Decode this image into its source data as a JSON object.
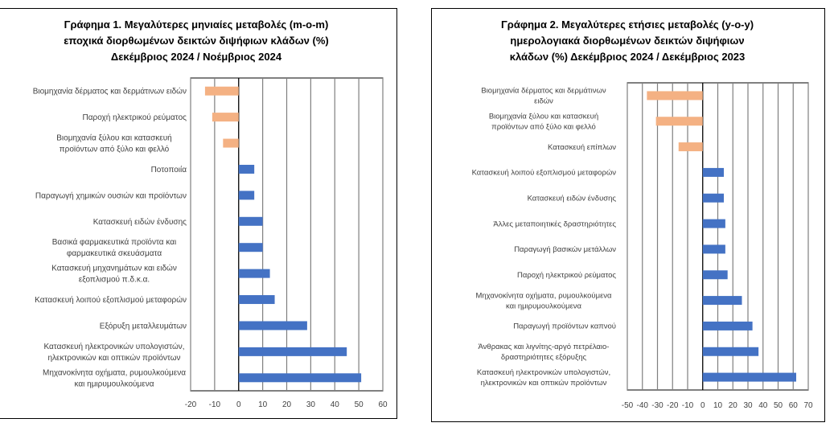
{
  "chart_data": [
    {
      "type": "bar",
      "orientation": "horizontal",
      "title": [
        "Γράφημα 1. Μεγαλύτερες μηνιαίες μεταβολές (m-o-m)",
        "εποχικά διορθωμένων δεικτών διψήφιων κλάδων (%)",
        "Δεκέμβριος 2024 / Νοέμβριος 2024"
      ],
      "xlim": [
        -20,
        60
      ],
      "xticks": [
        -20,
        -10,
        0,
        10,
        20,
        30,
        40,
        50,
        60
      ],
      "xtick_labels": [
        "-20",
        "-10",
        "0",
        "10",
        "20",
        "30",
        "40",
        "50",
        "60"
      ],
      "grid": "vertical",
      "categories": [
        [
          "Βιομηχανία δέρματος και δερμάτινων ειδών"
        ],
        [
          "Παροχή ηλεκτρικού ρεύματος"
        ],
        [
          "Βιομηχανία ξύλου και κατασκευή",
          "προϊόντων από ξύλο και φελλό"
        ],
        [
          "Ποτοποιία"
        ],
        [
          "Παραγωγή χημικών ουσιών και προϊόντων"
        ],
        [
          "Κατασκευή ειδών ένδυσης"
        ],
        [
          "Βασικά φαρμακευτικά προϊόντα και",
          "φαρμακευτικά σκευάσματα"
        ],
        [
          "Κατασκευή μηχανημάτων και ειδών",
          "εξοπλισμού π.δ.κ.α."
        ],
        [
          "Κατασκευή λοιπού εξοπλισμού μεταφορών"
        ],
        [
          "Εξόρυξη μεταλλευμάτων"
        ],
        [
          "Κατασκευή ηλεκτρονικών υπολογιστών,",
          "ηλεκτρονικών και οπτικών προϊόντων"
        ],
        [
          "Μηχανοκίνητα οχήματα, ρυμουλκούμενα",
          "και ημιρυμουλκούμενα"
        ]
      ],
      "values": [
        -14,
        -11,
        -6.5,
        6.5,
        6.5,
        10,
        10,
        13,
        15,
        28.5,
        45,
        51
      ],
      "colors": {
        "positive": "#4472c4",
        "negative": "#f4b183"
      }
    },
    {
      "type": "bar",
      "orientation": "horizontal",
      "title": [
        "Γράφημα 2. Μεγαλύτερες ετήσιες μεταβολές (y-o-y)",
        "ημερολογιακά διορθωμένων δεικτών διψήφιων",
        "κλάδων (%) Δεκέμβριος 2024 / Δεκέμβριος  2023"
      ],
      "xlim": [
        -50,
        70
      ],
      "xticks": [
        -50,
        -40,
        -30,
        -20,
        -10,
        0,
        10,
        20,
        30,
        40,
        50,
        60,
        70
      ],
      "xtick_labels": [
        "-50",
        "-40",
        "-30",
        "-20",
        "-10",
        "0",
        "10",
        "20",
        "30",
        "40",
        "50",
        "60",
        "70"
      ],
      "grid": "vertical",
      "categories": [
        [
          "Βιομηχανία δέρματος και δερμάτινων",
          "ειδών"
        ],
        [
          "Βιομηχανία ξύλου και κατασκευή",
          "προϊόντων από ξύλο και φελλό"
        ],
        [
          "Κατασκευή επίπλων"
        ],
        [
          "Κατασκευή λοιπού εξοπλισμού μεταφορών"
        ],
        [
          "Κατασκευή ειδών ένδυσης"
        ],
        [
          "Άλλες μεταποιητικές δραστηριότητες"
        ],
        [
          "Παραγωγή βασικών μετάλλων"
        ],
        [
          "Παροχή ηλεκτρικού ρεύματος"
        ],
        [
          "Μηχανοκίνητα οχήματα, ρυμουλκούμενα",
          "και ημιρυμουλκούμενα"
        ],
        [
          "Παραγωγή προϊόντων καπνού"
        ],
        [
          "Άνθρακας και λιγνίτης-αργό πετρέλαιο-",
          "δραστηριότητες εξόρυξης"
        ],
        [
          "Κατασκευή ηλεκτρονικών υπολογιστών,",
          "ηλεκτρονικών και οπτικών προϊόντων"
        ]
      ],
      "values": [
        -37,
        -31,
        -16,
        14,
        14,
        15,
        15,
        16.5,
        26,
        33,
        37,
        62
      ],
      "colors": {
        "positive": "#4472c4",
        "negative": "#f4b183"
      }
    }
  ]
}
